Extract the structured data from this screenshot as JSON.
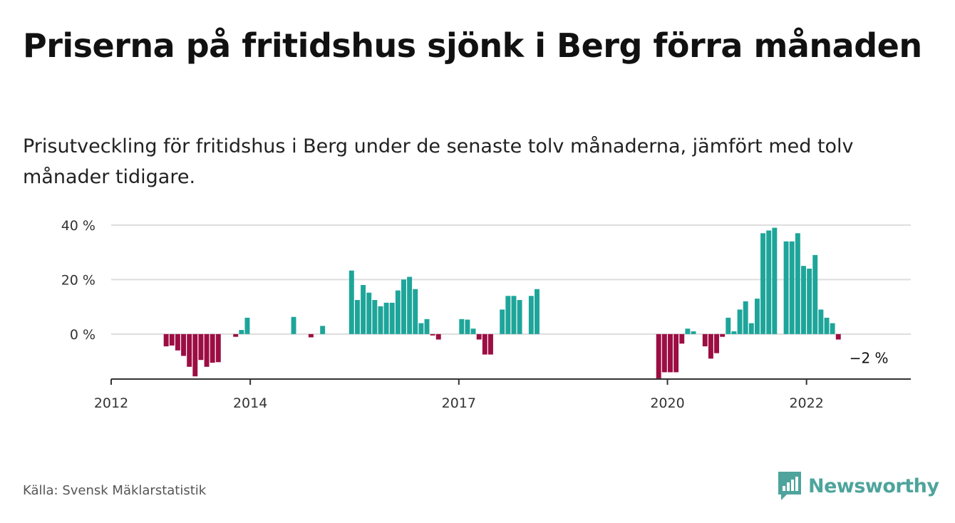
{
  "title": "Priserna på fritidshus sjönk i Berg förra månaden",
  "subtitle": "Prisutveckling för fritidshus i Berg under de senaste tolv månaderna, jämfört med tolv månader tidigare.",
  "source": "Källa: Svensk Mäklarstatistik",
  "brand": {
    "name": "Newsworthy",
    "color": "#4ea49c"
  },
  "colors": {
    "positive": "#1ea59a",
    "negative": "#9c0e43",
    "grid": "#dddddd",
    "axis": "#333333"
  },
  "chart_data": {
    "type": "bar",
    "x_unit": "month index from January 2012",
    "x_ticks": [
      {
        "label": "2012",
        "x": 0
      },
      {
        "label": "2014",
        "x": 24
      },
      {
        "label": "2017",
        "x": 60
      },
      {
        "label": "2020",
        "x": 96
      },
      {
        "label": "2022",
        "x": 120
      }
    ],
    "y_ticks": [
      {
        "label": "40 %",
        "value": 40
      },
      {
        "label": "20 %",
        "value": 20
      },
      {
        "label": "0 %",
        "value": 0
      }
    ],
    "ylim": [
      -16.5,
      41
    ],
    "x_range": [
      0,
      138
    ],
    "grid": true,
    "annotation": {
      "label": "−2 %",
      "x": 131,
      "value": -2
    },
    "values": [
      null,
      null,
      null,
      null,
      null,
      null,
      null,
      null,
      null,
      -4.5,
      -4.2,
      -6,
      -8,
      -12,
      -15.5,
      -9.5,
      -12,
      -10.5,
      -10.3,
      null,
      null,
      -1,
      1.5,
      6,
      null,
      null,
      null,
      null,
      null,
      null,
      null,
      6.3,
      null,
      null,
      -1.2,
      null,
      3,
      null,
      null,
      null,
      null,
      23.3,
      12.5,
      18,
      15.2,
      12.5,
      10.2,
      11.5,
      11.5,
      16,
      20,
      21,
      16.5,
      4,
      5.5,
      -0.5,
      -2,
      null,
      null,
      null,
      5.5,
      5.3,
      2,
      -2,
      -7.5,
      -7.5,
      null,
      9,
      14,
      14,
      12.5,
      null,
      14,
      16.5,
      null,
      null,
      null,
      null,
      null,
      null,
      null,
      null,
      null,
      null,
      null,
      null,
      null,
      null,
      null,
      null,
      null,
      null,
      null,
      null,
      -16.5,
      -14,
      -14,
      -14,
      -3.5,
      2,
      1,
      null,
      -4.5,
      -9,
      -7,
      -1,
      6,
      1,
      9,
      12,
      4,
      13,
      37,
      38,
      39,
      null,
      34,
      34,
      37,
      25,
      24,
      29,
      9,
      6,
      4,
      -2
    ]
  }
}
